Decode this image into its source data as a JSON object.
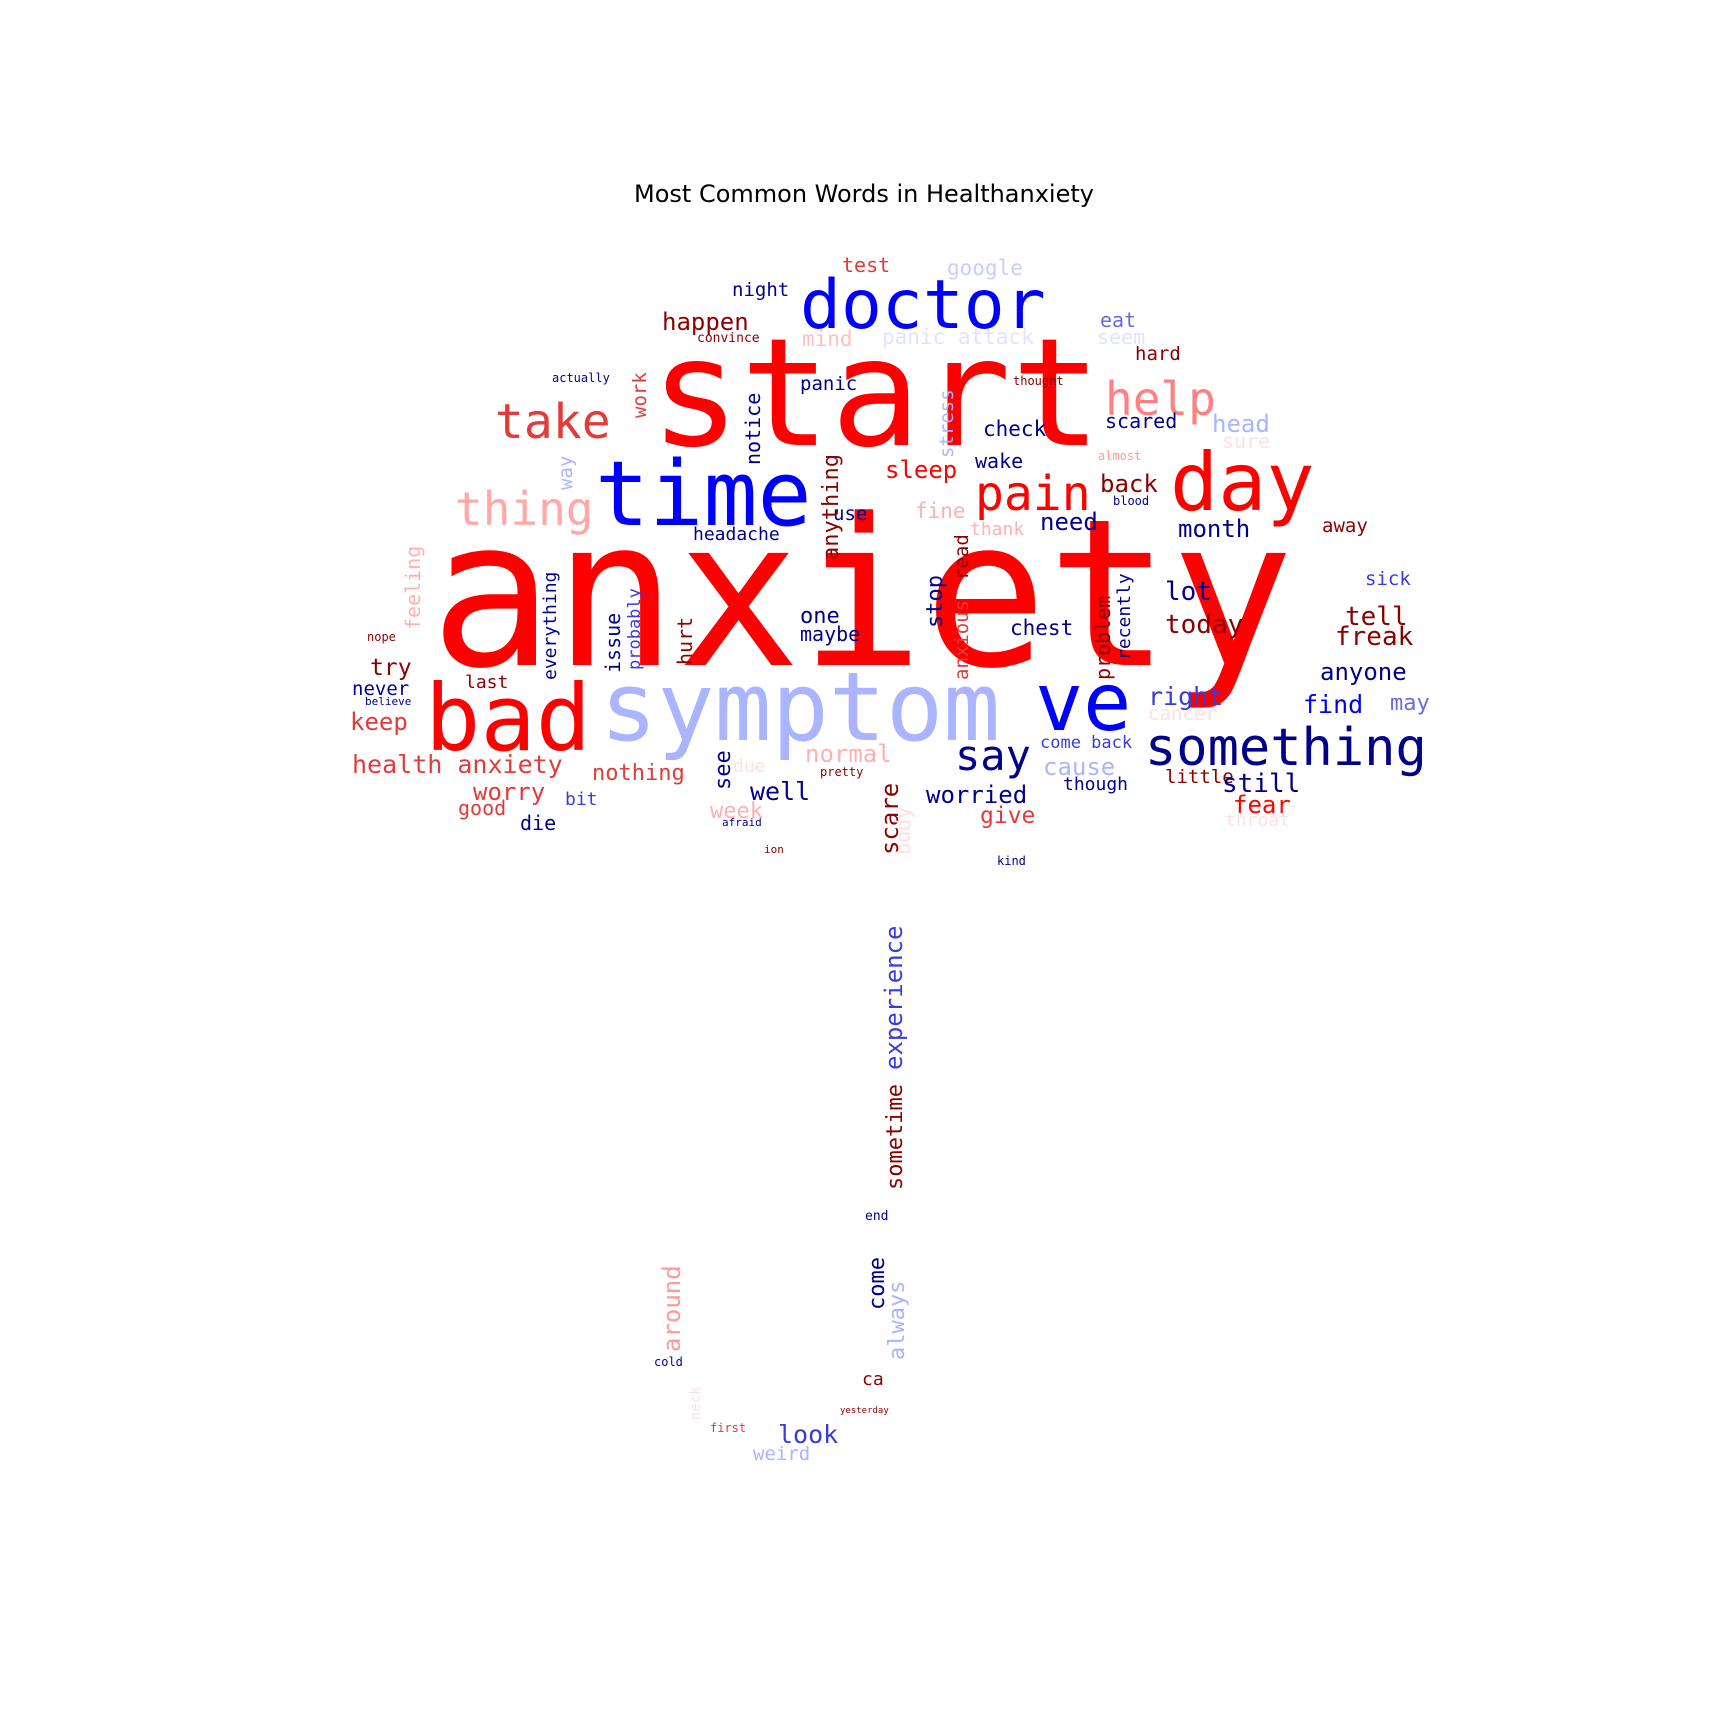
{
  "title": "Most Common Words in Healthanxiety",
  "palette": {
    "red": "#ff0000",
    "blue": "#0000ff",
    "navy": "#00008b",
    "darkred": "#8b0000",
    "lightblue": "#aab4ff",
    "lightred": "#ff9a9a",
    "midred": "#e23b3b",
    "midblue": "#3a3ae0"
  },
  "words": [
    {
      "text": "anxiety",
      "color": "red",
      "weight": 1.0
    },
    {
      "text": "start",
      "color": "red",
      "weight": 0.82
    },
    {
      "text": "symptom",
      "color": "lightblue",
      "weight": 0.56
    },
    {
      "text": "time",
      "color": "blue",
      "weight": 0.52
    },
    {
      "text": "bad",
      "color": "red",
      "weight": 0.52
    },
    {
      "text": "doctor",
      "color": "blue",
      "weight": 0.46
    },
    {
      "text": "day",
      "color": "red",
      "weight": 0.5
    },
    {
      "text": "ve",
      "color": "blue",
      "weight": 0.5
    },
    {
      "text": "something",
      "color": "navy",
      "weight": 0.38
    },
    {
      "text": "pain",
      "color": "red",
      "weight": 0.34
    },
    {
      "text": "help",
      "color": "lightred",
      "weight": 0.34
    },
    {
      "text": "take",
      "color": "red",
      "weight": 0.34
    },
    {
      "text": "thing",
      "color": "lightred",
      "weight": 0.34
    },
    {
      "text": "say",
      "color": "navy",
      "weight": 0.3
    },
    {
      "text": "health anxiety",
      "color": "red",
      "weight": 0.18
    },
    {
      "text": "experience",
      "color": "midblue",
      "weight": 0.18
    },
    {
      "text": "sometime",
      "color": "darkred",
      "weight": 0.18
    },
    {
      "text": "anything",
      "color": "darkred",
      "weight": 0.18
    },
    {
      "text": "worried",
      "color": "navy",
      "weight": 0.17
    },
    {
      "text": "panic attack",
      "color": "lightblue",
      "weight": 0.17
    },
    {
      "text": "happen",
      "color": "darkred",
      "weight": 0.17
    },
    {
      "text": "sleep",
      "color": "red",
      "weight": 0.17
    },
    {
      "text": "check",
      "color": "navy",
      "weight": 0.16
    },
    {
      "text": "month",
      "color": "navy",
      "weight": 0.17
    },
    {
      "text": "today",
      "color": "darkred",
      "weight": 0.17
    },
    {
      "text": "freak",
      "color": "darkred",
      "weight": 0.17
    },
    {
      "text": "anyone",
      "color": "navy",
      "weight": 0.16
    },
    {
      "text": "right",
      "color": "blue",
      "weight": 0.17
    },
    {
      "text": "find",
      "color": "blue",
      "weight": 0.17
    },
    {
      "text": "still",
      "color": "navy",
      "weight": 0.17
    },
    {
      "text": "fear",
      "color": "red",
      "weight": 0.17
    },
    {
      "text": "around",
      "color": "lightred",
      "weight": 0.17
    },
    {
      "text": "always",
      "color": "lightblue",
      "weight": 0.16
    },
    {
      "text": "come",
      "color": "navy",
      "weight": 0.16
    },
    {
      "text": "look",
      "color": "blue",
      "weight": 0.17
    },
    {
      "text": "weird",
      "color": "lightblue",
      "weight": 0.14
    }
  ]
}
